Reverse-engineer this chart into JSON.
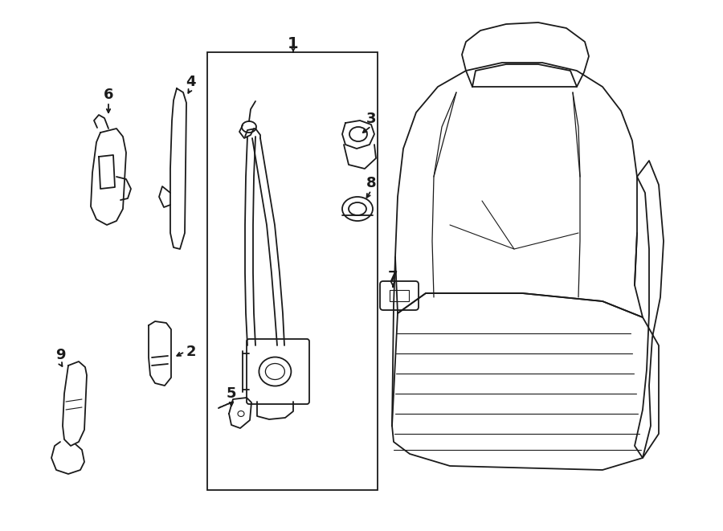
{
  "bg_color": "#ffffff",
  "line_color": "#1a1a1a",
  "fig_width": 9.0,
  "fig_height": 6.61,
  "dpi": 100,
  "lw": 1.3
}
